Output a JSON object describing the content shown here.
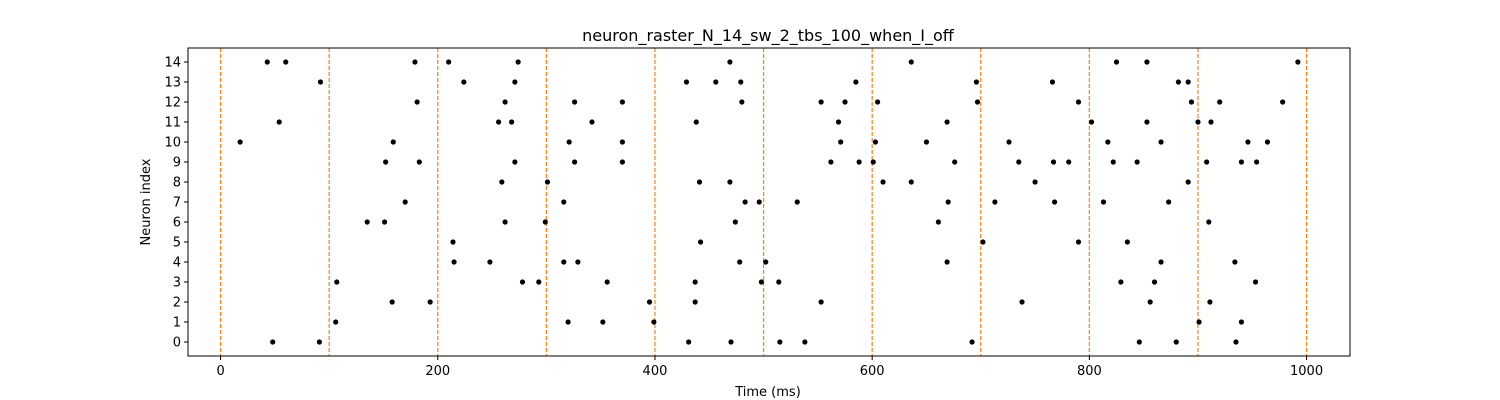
{
  "chart_data": {
    "type": "scatter",
    "title": "neuron_raster_N_14_sw_2_tbs_100_when_I_off",
    "xlabel": "Time (ms)",
    "ylabel": "Neuron index",
    "xlim": [
      -30,
      1040
    ],
    "ylim": [
      -0.7,
      14.7
    ],
    "xticks": [
      0,
      200,
      400,
      600,
      800,
      1000
    ],
    "xtick_labels": [
      "0",
      "200",
      "400",
      "600",
      "800",
      "1000"
    ],
    "yticks": [
      0,
      1,
      2,
      3,
      4,
      5,
      6,
      7,
      8,
      9,
      10,
      11,
      12,
      13,
      14
    ],
    "ytick_labels": [
      "0",
      "1",
      "2",
      "3",
      "4",
      "5",
      "6",
      "7",
      "8",
      "9",
      "10",
      "11",
      "12",
      "13",
      "14"
    ],
    "marker_color": "#000000",
    "vline_color": "#ff7f0e",
    "vlines": [
      0,
      100,
      200,
      300,
      400,
      500,
      600,
      700,
      800,
      900,
      1000
    ],
    "grid": false,
    "points": [
      {
        "x": 43,
        "y": 14
      },
      {
        "x": 60,
        "y": 14
      },
      {
        "x": 179,
        "y": 14
      },
      {
        "x": 210,
        "y": 14
      },
      {
        "x": 274,
        "y": 14
      },
      {
        "x": 469,
        "y": 14
      },
      {
        "x": 636,
        "y": 14
      },
      {
        "x": 825,
        "y": 14
      },
      {
        "x": 853,
        "y": 14
      },
      {
        "x": 992,
        "y": 14
      },
      {
        "x": 92,
        "y": 13
      },
      {
        "x": 224,
        "y": 13
      },
      {
        "x": 271,
        "y": 13
      },
      {
        "x": 429,
        "y": 13
      },
      {
        "x": 456,
        "y": 13
      },
      {
        "x": 479,
        "y": 13
      },
      {
        "x": 585,
        "y": 13
      },
      {
        "x": 696,
        "y": 13
      },
      {
        "x": 766,
        "y": 13
      },
      {
        "x": 882,
        "y": 13
      },
      {
        "x": 891,
        "y": 13
      },
      {
        "x": 181,
        "y": 12
      },
      {
        "x": 262,
        "y": 12
      },
      {
        "x": 326,
        "y": 12
      },
      {
        "x": 370,
        "y": 12
      },
      {
        "x": 480,
        "y": 12
      },
      {
        "x": 553,
        "y": 12
      },
      {
        "x": 575,
        "y": 12
      },
      {
        "x": 605,
        "y": 12
      },
      {
        "x": 697,
        "y": 12
      },
      {
        "x": 790,
        "y": 12
      },
      {
        "x": 894,
        "y": 12
      },
      {
        "x": 920,
        "y": 12
      },
      {
        "x": 978,
        "y": 12
      },
      {
        "x": 54,
        "y": 11
      },
      {
        "x": 256,
        "y": 11
      },
      {
        "x": 268,
        "y": 11
      },
      {
        "x": 342,
        "y": 11
      },
      {
        "x": 438,
        "y": 11
      },
      {
        "x": 569,
        "y": 11
      },
      {
        "x": 669,
        "y": 11
      },
      {
        "x": 802,
        "y": 11
      },
      {
        "x": 853,
        "y": 11
      },
      {
        "x": 900,
        "y": 11
      },
      {
        "x": 912,
        "y": 11
      },
      {
        "x": 18,
        "y": 10
      },
      {
        "x": 159,
        "y": 10
      },
      {
        "x": 321,
        "y": 10
      },
      {
        "x": 370,
        "y": 10
      },
      {
        "x": 571,
        "y": 10
      },
      {
        "x": 603,
        "y": 10
      },
      {
        "x": 650,
        "y": 10
      },
      {
        "x": 726,
        "y": 10
      },
      {
        "x": 817,
        "y": 10
      },
      {
        "x": 866,
        "y": 10
      },
      {
        "x": 946,
        "y": 10
      },
      {
        "x": 964,
        "y": 10
      },
      {
        "x": 152,
        "y": 9
      },
      {
        "x": 183,
        "y": 9
      },
      {
        "x": 271,
        "y": 9
      },
      {
        "x": 326,
        "y": 9
      },
      {
        "x": 370,
        "y": 9
      },
      {
        "x": 562,
        "y": 9
      },
      {
        "x": 588,
        "y": 9
      },
      {
        "x": 601,
        "y": 9
      },
      {
        "x": 676,
        "y": 9
      },
      {
        "x": 735,
        "y": 9
      },
      {
        "x": 767,
        "y": 9
      },
      {
        "x": 781,
        "y": 9
      },
      {
        "x": 822,
        "y": 9
      },
      {
        "x": 844,
        "y": 9
      },
      {
        "x": 908,
        "y": 9
      },
      {
        "x": 940,
        "y": 9
      },
      {
        "x": 954,
        "y": 9
      },
      {
        "x": 259,
        "y": 8
      },
      {
        "x": 301,
        "y": 8
      },
      {
        "x": 441,
        "y": 8
      },
      {
        "x": 469,
        "y": 8
      },
      {
        "x": 610,
        "y": 8
      },
      {
        "x": 636,
        "y": 8
      },
      {
        "x": 750,
        "y": 8
      },
      {
        "x": 891,
        "y": 8
      },
      {
        "x": 170,
        "y": 7
      },
      {
        "x": 316,
        "y": 7
      },
      {
        "x": 483,
        "y": 7
      },
      {
        "x": 496,
        "y": 7
      },
      {
        "x": 531,
        "y": 7
      },
      {
        "x": 670,
        "y": 7
      },
      {
        "x": 713,
        "y": 7
      },
      {
        "x": 768,
        "y": 7
      },
      {
        "x": 813,
        "y": 7
      },
      {
        "x": 873,
        "y": 7
      },
      {
        "x": 135,
        "y": 6
      },
      {
        "x": 151,
        "y": 6
      },
      {
        "x": 262,
        "y": 6
      },
      {
        "x": 299,
        "y": 6
      },
      {
        "x": 474,
        "y": 6
      },
      {
        "x": 661,
        "y": 6
      },
      {
        "x": 910,
        "y": 6
      },
      {
        "x": 214,
        "y": 5
      },
      {
        "x": 442,
        "y": 5
      },
      {
        "x": 702,
        "y": 5
      },
      {
        "x": 790,
        "y": 5
      },
      {
        "x": 835,
        "y": 5
      },
      {
        "x": 215,
        "y": 4
      },
      {
        "x": 248,
        "y": 4
      },
      {
        "x": 316,
        "y": 4
      },
      {
        "x": 329,
        "y": 4
      },
      {
        "x": 478,
        "y": 4
      },
      {
        "x": 502,
        "y": 4
      },
      {
        "x": 669,
        "y": 4
      },
      {
        "x": 866,
        "y": 4
      },
      {
        "x": 934,
        "y": 4
      },
      {
        "x": 107,
        "y": 3
      },
      {
        "x": 278,
        "y": 3
      },
      {
        "x": 293,
        "y": 3
      },
      {
        "x": 356,
        "y": 3
      },
      {
        "x": 437,
        "y": 3
      },
      {
        "x": 498,
        "y": 3
      },
      {
        "x": 514,
        "y": 3
      },
      {
        "x": 829,
        "y": 3
      },
      {
        "x": 860,
        "y": 3
      },
      {
        "x": 953,
        "y": 3
      },
      {
        "x": 158,
        "y": 2
      },
      {
        "x": 193,
        "y": 2
      },
      {
        "x": 395,
        "y": 2
      },
      {
        "x": 437,
        "y": 2
      },
      {
        "x": 553,
        "y": 2
      },
      {
        "x": 738,
        "y": 2
      },
      {
        "x": 856,
        "y": 2
      },
      {
        "x": 911,
        "y": 2
      },
      {
        "x": 106,
        "y": 1
      },
      {
        "x": 320,
        "y": 1
      },
      {
        "x": 352,
        "y": 1
      },
      {
        "x": 399,
        "y": 1
      },
      {
        "x": 901,
        "y": 1
      },
      {
        "x": 940,
        "y": 1
      },
      {
        "x": 48,
        "y": 0
      },
      {
        "x": 91,
        "y": 0
      },
      {
        "x": 431,
        "y": 0
      },
      {
        "x": 470,
        "y": 0
      },
      {
        "x": 515,
        "y": 0
      },
      {
        "x": 538,
        "y": 0
      },
      {
        "x": 692,
        "y": 0
      },
      {
        "x": 846,
        "y": 0
      },
      {
        "x": 880,
        "y": 0
      },
      {
        "x": 935,
        "y": 0
      }
    ]
  }
}
